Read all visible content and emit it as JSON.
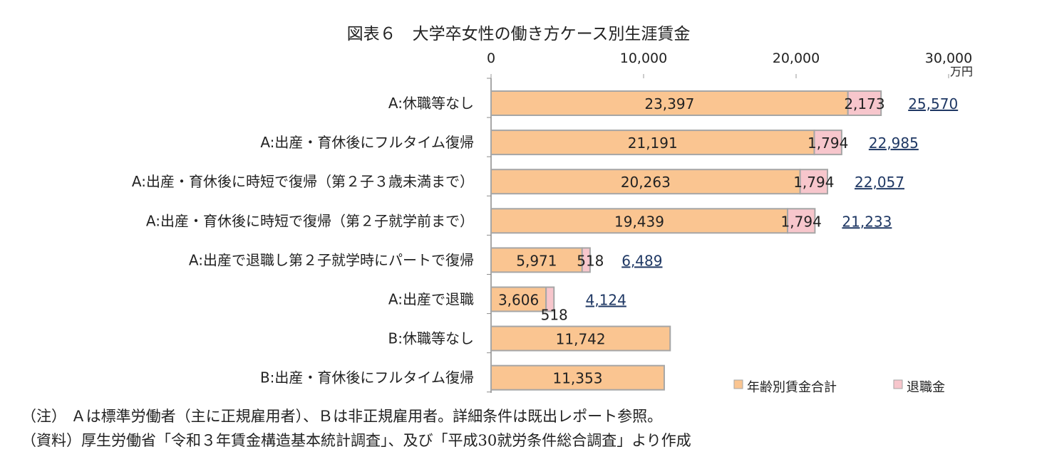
{
  "title": "図表６　大学卒女性の働き方ケース別生涯賃金",
  "notes": [
    "（注） Ａは標準労働者（主に正規雇用者）、Ｂは非正規雇用者。詳細条件は既出レポート参照。",
    "（資料）厚生労働省「令和３年賃金構造基本統計調査」、及び「平成30就労条件総合調査」より作成"
  ],
  "colors": {
    "wage": "#FAC591",
    "retire": "#F7C6CC",
    "border": "#A6A6A6",
    "total_text": "#1F3864"
  },
  "chart_data": {
    "type": "bar",
    "orientation": "horizontal",
    "stacked": true,
    "title": "図表６　大学卒女性の働き方ケース別生涯賃金",
    "unit": "万円",
    "xlim": [
      0,
      30000
    ],
    "x_ticks": [
      "0",
      "10,000",
      "20,000",
      "30,000"
    ],
    "legend_position": "bottom-right",
    "categories": [
      "A:休職等なし",
      "A:出産・育休後にフルタイム復帰",
      "A:出産・育休後に時短で復帰（第２子３歳未満まで）",
      "A:出産・育休後に時短で復帰（第２子就学前まで）",
      "A:出産で退職し第２子就学時にパートで復帰",
      "A:出産で退職",
      "B:休職等なし",
      "B:出産・育休後にフルタイム復帰"
    ],
    "series": [
      {
        "name": "年齢別賃金合計",
        "values": [
          23397,
          21191,
          20263,
          19439,
          5971,
          3606,
          11742,
          11353
        ],
        "labels": [
          "23,397",
          "21,191",
          "20,263",
          "19,439",
          "5,971",
          "3,606",
          "11,742",
          "11,353"
        ]
      },
      {
        "name": "退職金",
        "values": [
          2173,
          1794,
          1794,
          1794,
          518,
          518,
          0,
          0
        ],
        "labels": [
          "2,173",
          "1,794",
          "1,794",
          "1,794",
          "518",
          "518",
          "",
          ""
        ]
      }
    ],
    "totals": [
      "25,570",
      "22,985",
      "22,057",
      "21,233",
      "6,489",
      "4,124",
      "",
      ""
    ]
  }
}
